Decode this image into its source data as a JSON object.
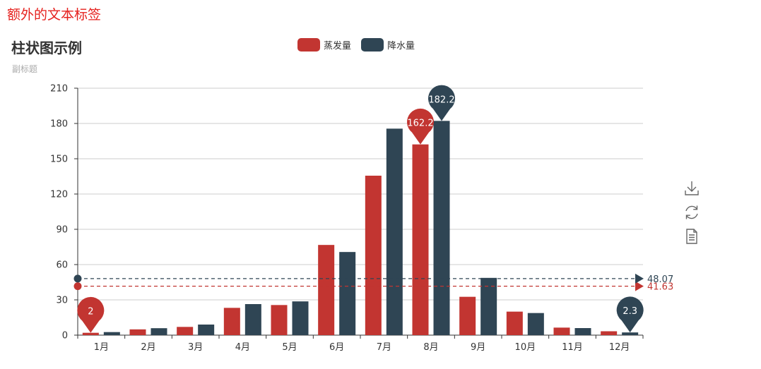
{
  "extra_label": "额外的文本标签",
  "title": "柱状图示例",
  "subtitle": "副标题",
  "colors": {
    "evaporation": "#c23531",
    "precipitation": "#2f4554",
    "axis": "#333333",
    "grid": "#cccccc"
  },
  "legend": [
    {
      "name": "蒸发量",
      "color": "#c23531"
    },
    {
      "name": "降水量",
      "color": "#2f4554"
    }
  ],
  "toolbox": {
    "icons": [
      "save-as-image-icon",
      "restore-icon",
      "data-view-icon"
    ]
  },
  "chart_data": {
    "type": "bar",
    "categories": [
      "1月",
      "2月",
      "3月",
      "4月",
      "5月",
      "6月",
      "7月",
      "8月",
      "9月",
      "10月",
      "11月",
      "12月"
    ],
    "series": [
      {
        "name": "蒸发量",
        "color": "#c23531",
        "values": [
          2.0,
          4.9,
          7.0,
          23.2,
          25.6,
          76.7,
          135.6,
          162.2,
          32.6,
          20.0,
          6.4,
          3.3
        ],
        "mark_points": [
          {
            "type": "max",
            "label": "162.2"
          },
          {
            "type": "min",
            "label": "2"
          }
        ],
        "mark_line": {
          "type": "average",
          "value": 41.63,
          "label": "41.63"
        }
      },
      {
        "name": "降水量",
        "color": "#2f4554",
        "values": [
          2.6,
          5.9,
          9.0,
          26.4,
          28.7,
          70.7,
          175.6,
          182.2,
          48.7,
          18.8,
          6.0,
          2.3
        ],
        "mark_points": [
          {
            "type": "max",
            "label": "182.2"
          },
          {
            "type": "min",
            "label": "2.3"
          }
        ],
        "mark_line": {
          "type": "average",
          "value": 48.07,
          "label": "48.07"
        }
      }
    ],
    "ylim": [
      0,
      210
    ],
    "yticks": [
      0,
      30,
      60,
      90,
      120,
      150,
      180,
      210
    ],
    "grid": true,
    "legend_position": "top-center"
  }
}
